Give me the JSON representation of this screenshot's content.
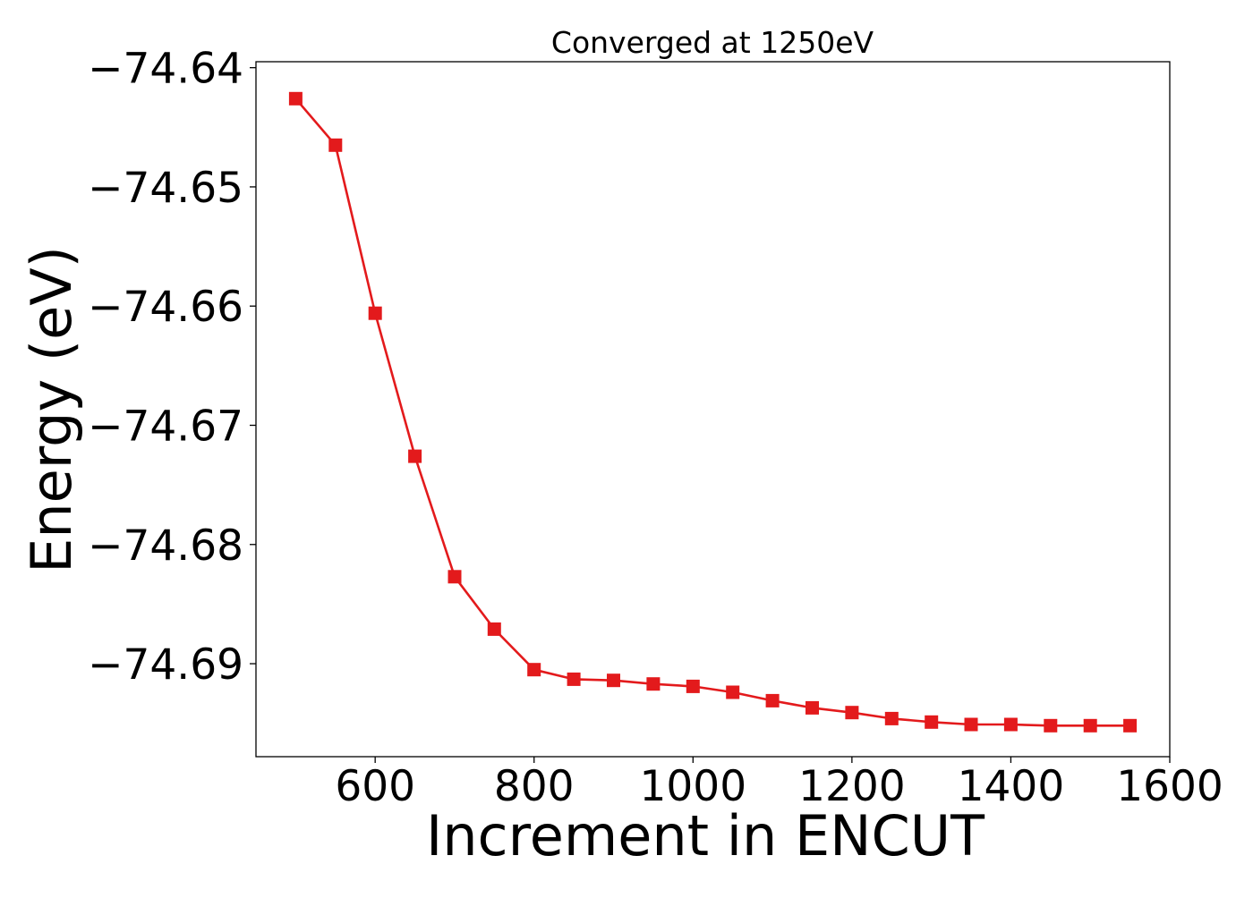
{
  "chart_data": {
    "type": "line",
    "title": "Converged at 1250eV",
    "xlabel": "Increment in ENCUT",
    "ylabel": "Energy (eV)",
    "xlim": [
      450,
      1600
    ],
    "ylim": [
      -74.6978,
      -74.6395
    ],
    "xticks": [
      600,
      800,
      1000,
      1200,
      1400,
      1600
    ],
    "xtick_labels": [
      "600",
      "800",
      "1000",
      "1200",
      "1400",
      "1600"
    ],
    "yticks": [
      -74.64,
      -74.65,
      -74.66,
      -74.67,
      -74.68,
      -74.69
    ],
    "ytick_labels": [
      "−74.64",
      "−74.65",
      "−74.66",
      "−74.67",
      "−74.68",
      "−74.69"
    ],
    "grid": false,
    "marker": "square",
    "color": "#e31a1c",
    "series": [
      {
        "x": [
          500,
          550,
          600,
          650,
          700,
          750,
          800,
          850,
          900,
          950,
          1000,
          1050,
          1100,
          1150,
          1200,
          1250,
          1300,
          1350,
          1400,
          1450,
          1500,
          1550
        ],
        "values": [
          -74.6426,
          -74.6465,
          -74.6606,
          -74.6726,
          -74.6827,
          -74.6871,
          -74.6905,
          -74.6913,
          -74.6914,
          -74.6917,
          -74.6919,
          -74.6924,
          -74.6931,
          -74.6937,
          -74.6941,
          -74.6946,
          -74.6949,
          -74.6951,
          -74.6951,
          -74.6952,
          -74.6952,
          -74.6952
        ]
      }
    ]
  }
}
